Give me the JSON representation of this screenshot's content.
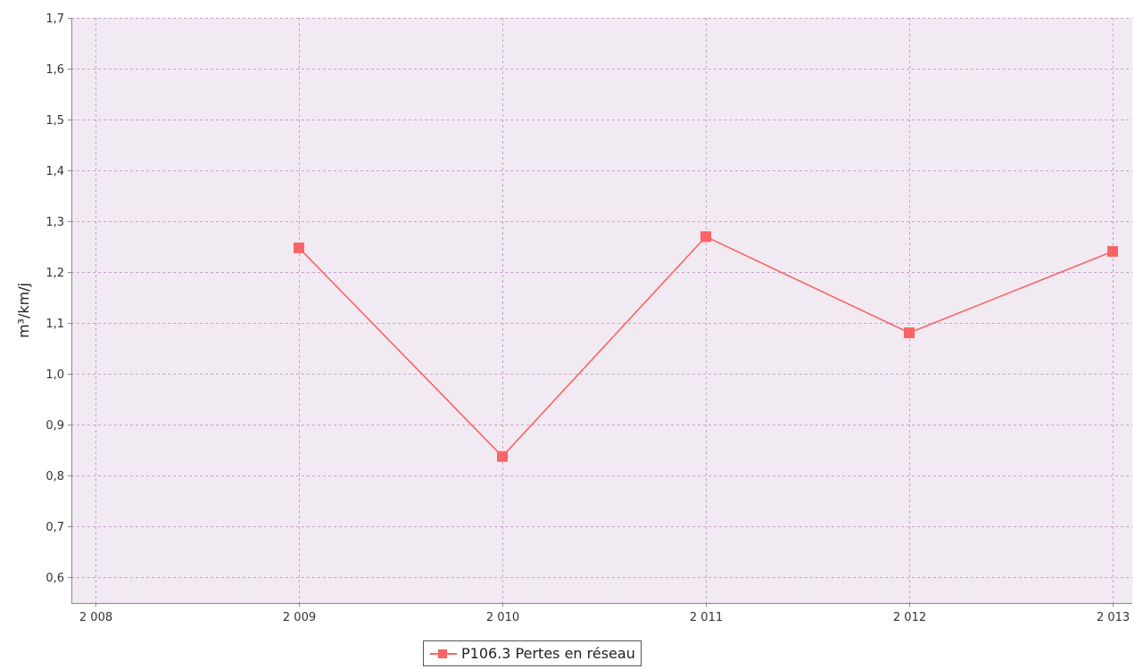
{
  "chart_data": {
    "type": "line",
    "x": [
      2009,
      2010,
      2011,
      2012,
      2013
    ],
    "series": [
      {
        "name": "P106.3 Pertes en réseau",
        "values": [
          1.248,
          0.838,
          1.27,
          1.081,
          1.241
        ]
      }
    ],
    "xlim": [
      2008,
      2013
    ],
    "ylim": [
      0.55,
      1.7
    ],
    "x_ticks": [
      2008,
      2009,
      2010,
      2011,
      2012,
      2013
    ],
    "x_tick_labels": [
      "2 008",
      "2 009",
      "2 010",
      "2 011",
      "2 012",
      "2 013"
    ],
    "y_ticks": [
      0.6,
      0.7,
      0.8,
      0.9,
      1.0,
      1.1,
      1.2,
      1.3,
      1.4,
      1.5,
      1.6,
      1.7
    ],
    "y_tick_labels": [
      "0,6",
      "0,7",
      "0,8",
      "0,9",
      "1,0",
      "1,1",
      "1,2",
      "1,3",
      "1,4",
      "1,5",
      "1,6",
      "1,7"
    ],
    "ylabel": "m³/km/j",
    "xlabel": "",
    "title": "",
    "grid": true,
    "legend_position": "bottom-center",
    "colors": {
      "plot_background": "#f2eaf2",
      "grid": "#c8a0cd",
      "series": "#fa6464",
      "axis": "#888888"
    }
  }
}
